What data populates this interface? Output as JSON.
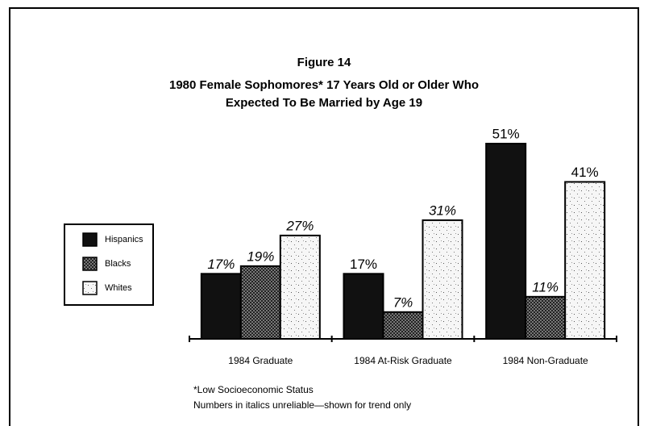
{
  "chart_data": {
    "type": "bar",
    "title": "Figure 14",
    "subtitle": [
      "1980 Female Sophomores* 17 Years Old or Older Who",
      "Expected To Be Married by Age 19"
    ],
    "categories": [
      "1984 Graduate",
      "1984 At-Risk Graduate",
      "1984 Non-Graduate"
    ],
    "series": [
      {
        "name": "Hispanics",
        "color": "#111111",
        "values": [
          17,
          17,
          51
        ],
        "value_labels": [
          "17%",
          "17%",
          "51%"
        ],
        "italic": [
          true,
          false,
          false
        ]
      },
      {
        "name": "Blacks",
        "color": "#555555",
        "values": [
          19,
          7,
          11
        ],
        "value_labels": [
          "19%",
          "7%",
          "11%"
        ],
        "italic": [
          true,
          true,
          true
        ]
      },
      {
        "name": "Whites",
        "color": "#f4f4f4",
        "values": [
          27,
          31,
          41
        ],
        "value_labels": [
          "27%",
          "31%",
          "41%"
        ],
        "italic": [
          true,
          true,
          false
        ]
      }
    ],
    "legend": "left",
    "notes": [
      "*Low Socioeconomic Status",
      "Numbers in italics unreliable—shown for trend only"
    ]
  }
}
